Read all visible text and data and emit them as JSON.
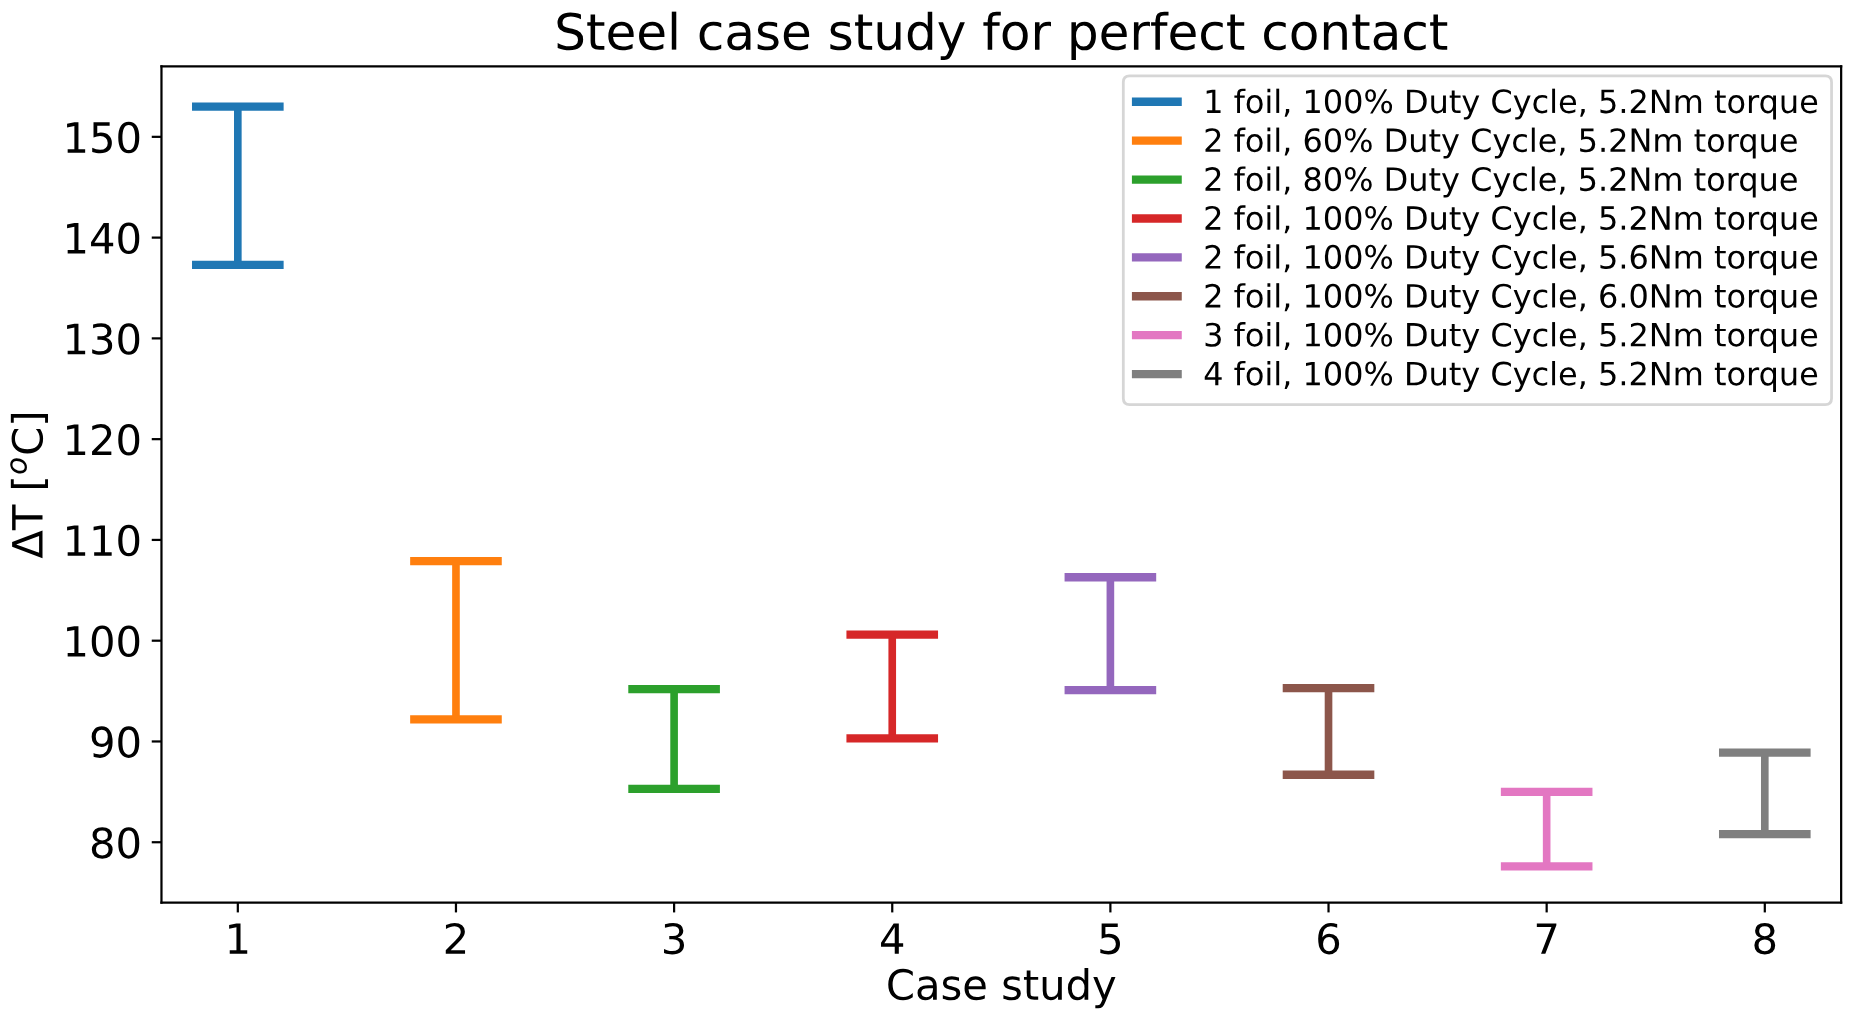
{
  "chart_data": {
    "type": "bar",
    "title": "Steel case study for perfect contact",
    "xlabel": "Case study",
    "ylabel": "ΔT [$^{o}$C]",
    "legend": "top right",
    "grid": false,
    "categories": [
      "1",
      "2",
      "3",
      "4",
      "5",
      "6",
      "7",
      "8"
    ],
    "ylim": [
      74,
      157
    ],
    "yticks": [
      80,
      90,
      100,
      110,
      120,
      130,
      140,
      150
    ],
    "series": [
      {
        "name": "1 foil, 100% Duty Cycle, 5.2Nm torque",
        "color": "#1f77b4",
        "values": [
          15.7,
          null,
          null,
          null,
          null,
          null,
          null,
          null
        ],
        "base": [
          137.3,
          null,
          null,
          null,
          null,
          null,
          null,
          null
        ]
      },
      {
        "name": "2 foil, 60% Duty Cycle, 5.2Nm torque",
        "color": "#ff7f0e",
        "values": [
          null,
          15.7,
          null,
          null,
          null,
          null,
          null,
          null
        ],
        "base": [
          null,
          92.2,
          null,
          null,
          null,
          null,
          null,
          null
        ]
      },
      {
        "name": "2 foil, 80% Duty Cycle, 5.2Nm torque",
        "color": "#2ca02c",
        "values": [
          null,
          null,
          9.9,
          null,
          null,
          null,
          null,
          null
        ],
        "base": [
          null,
          null,
          85.3,
          null,
          null,
          null,
          null,
          null
        ]
      },
      {
        "name": "2 foil, 100% Duty Cycle, 5.2Nm torque",
        "color": "#d62728",
        "values": [
          null,
          null,
          null,
          10.3,
          null,
          null,
          null,
          null
        ],
        "base": [
          null,
          null,
          null,
          90.3,
          null,
          null,
          null,
          null
        ]
      },
      {
        "name": "2 foil, 100% Duty Cycle, 5.6Nm torque",
        "color": "#9467bd",
        "values": [
          null,
          null,
          null,
          null,
          11.2,
          null,
          null,
          null
        ],
        "base": [
          null,
          null,
          null,
          null,
          95.1,
          null,
          null,
          null
        ]
      },
      {
        "name": "2 foil, 100% Duty Cycle, 6.0Nm torque",
        "color": "#8c564b",
        "values": [
          null,
          null,
          null,
          null,
          null,
          8.6,
          null,
          null
        ],
        "base": [
          null,
          null,
          null,
          null,
          null,
          86.7,
          null,
          null
        ]
      },
      {
        "name": "3 foil, 100% Duty Cycle, 5.2Nm torque",
        "color": "#e377c2",
        "values": [
          null,
          null,
          null,
          null,
          null,
          null,
          7.4,
          null
        ],
        "base": [
          null,
          null,
          null,
          null,
          null,
          null,
          77.6,
          null
        ]
      },
      {
        "name": "4 foil, 100% Duty Cycle, 5.2Nm torque",
        "color": "#7f7f7f",
        "values": [
          null,
          null,
          null,
          null,
          null,
          null,
          null,
          8.1
        ],
        "base": [
          null,
          null,
          null,
          null,
          null,
          null,
          null,
          80.8
        ]
      }
    ]
  }
}
